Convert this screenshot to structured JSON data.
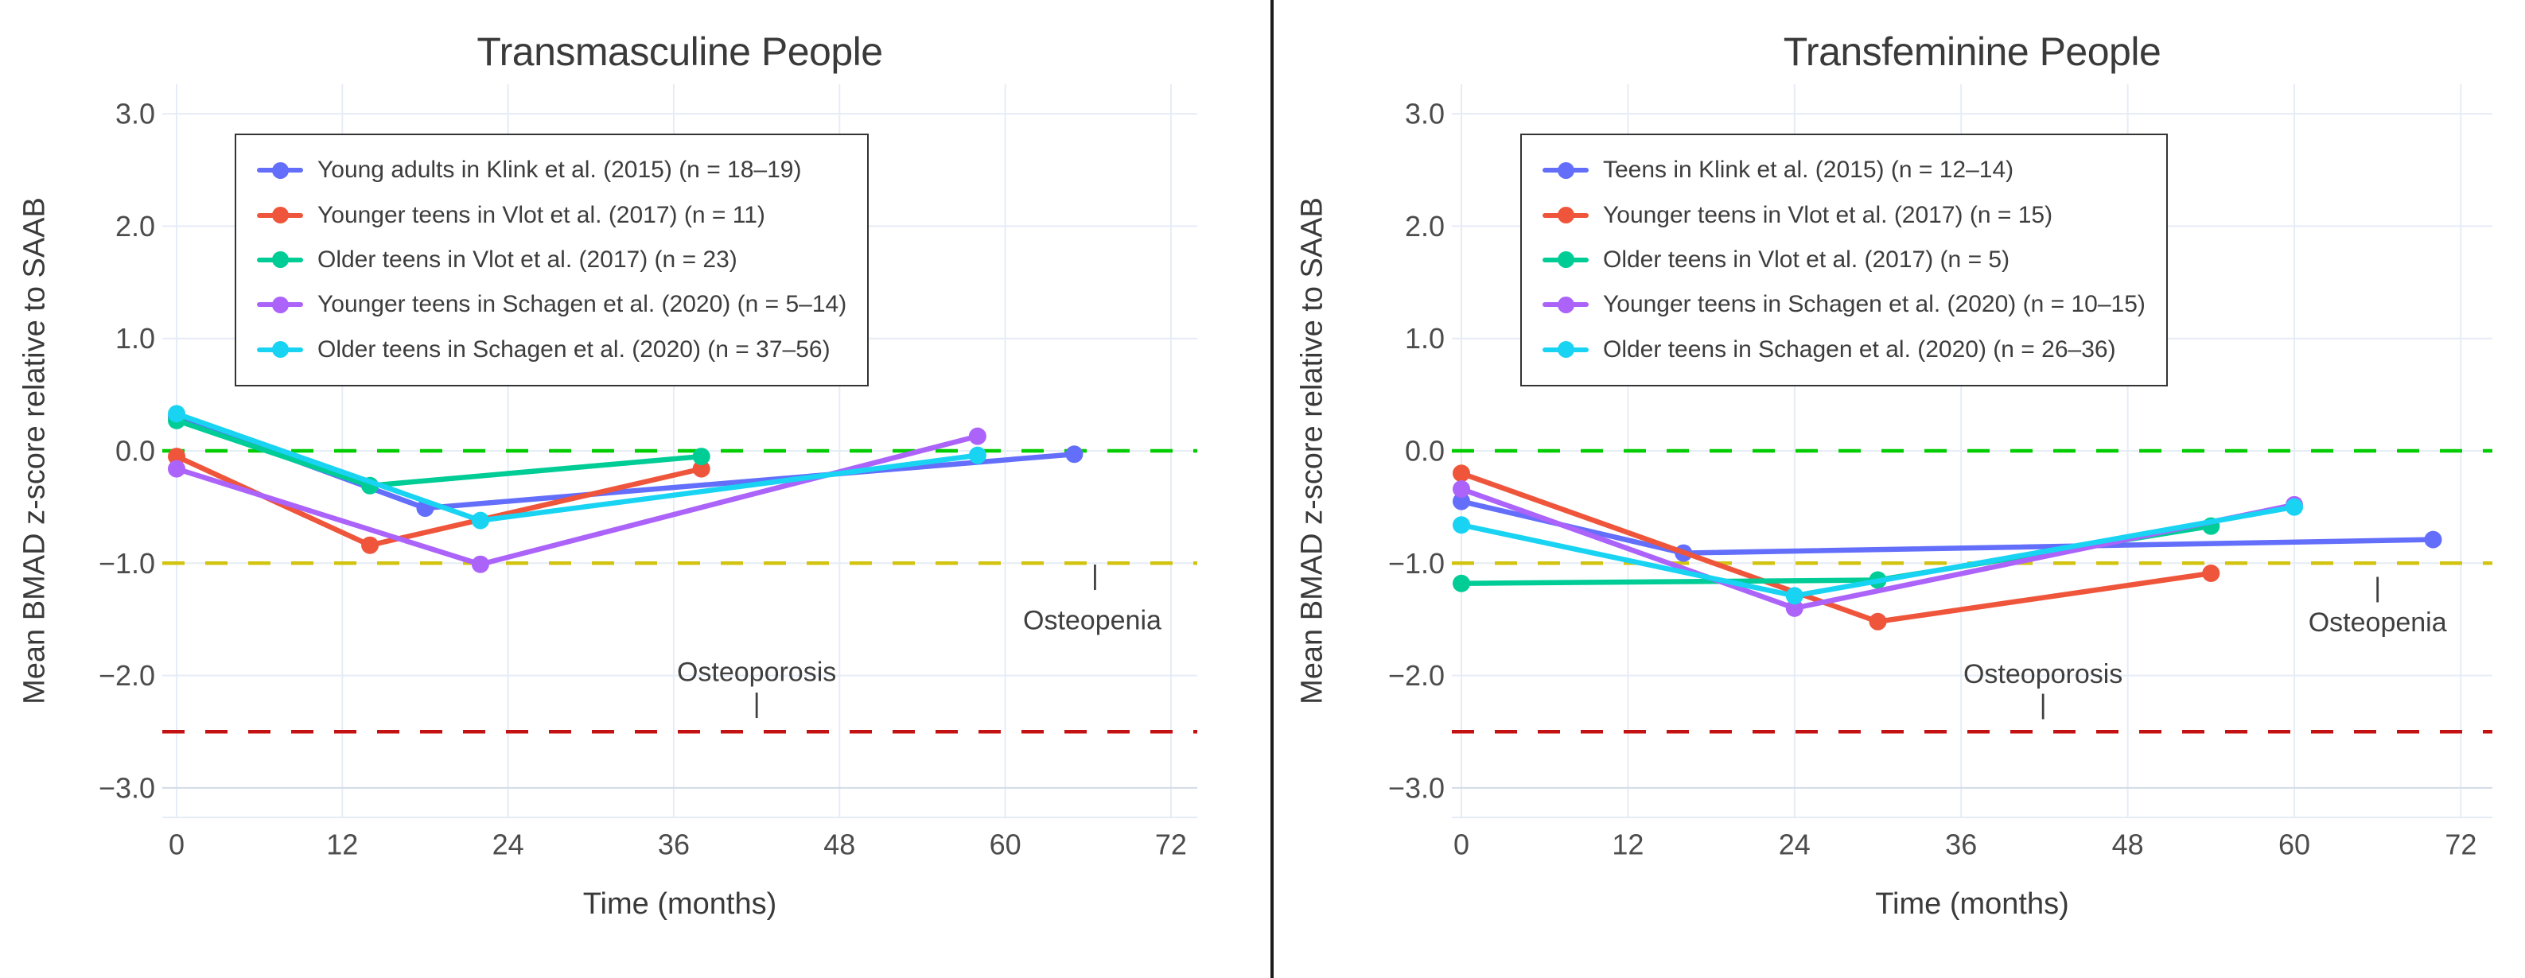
{
  "figure": {
    "background": "#ffffff",
    "divider_color": "#1b1b1b",
    "grid_color": "#e6ecf6",
    "text_color": "#3a3a3a"
  },
  "chart_data": [
    {
      "type": "line",
      "title": "Transmasculine People",
      "xlabel": "Time (months)",
      "ylabel": "Mean BMAD z-score relative to SAAB",
      "xlim": [
        -1,
        74
      ],
      "ylim": [
        -3.25,
        3.25
      ],
      "x_ticks": [
        0,
        12,
        24,
        36,
        48,
        60,
        72
      ],
      "y_ticks": [
        3,
        2,
        1,
        0,
        -1,
        -2,
        -3
      ],
      "y_tick_labels": [
        "3.0",
        "2.0",
        "1.0",
        "0.0",
        "−1.0",
        "−2.0",
        "−3.0"
      ],
      "grid": true,
      "legend_position": "top-left-inside",
      "series": [
        {
          "name": "Young adults in Klink et al. (2015) (n = 18–19)",
          "color": "#636EFA",
          "x": [
            0,
            18,
            65
          ],
          "y": [
            0.3,
            -0.51,
            -0.03
          ]
        },
        {
          "name": "Younger teens in Vlot et al. (2017) (n = 11)",
          "color": "#EF553B",
          "x": [
            0,
            14,
            38
          ],
          "y": [
            -0.05,
            -0.84,
            -0.16
          ]
        },
        {
          "name": "Older teens in Vlot et al. (2017) (n = 23)",
          "color": "#00CC96",
          "x": [
            0,
            14,
            38
          ],
          "y": [
            0.27,
            -0.31,
            -0.05
          ]
        },
        {
          "name": "Younger teens in Schagen et al. (2020) (n = 5–14)",
          "color": "#AB63FA",
          "x": [
            0,
            22,
            58
          ],
          "y": [
            -0.16,
            -1.01,
            0.13
          ]
        },
        {
          "name": "Older teens in Schagen et al. (2020) (n = 37–56)",
          "color": "#19D3F3",
          "x": [
            0,
            22,
            58
          ],
          "y": [
            0.33,
            -0.62,
            -0.04
          ]
        }
      ],
      "reference_lines": [
        {
          "y": 0.0,
          "color": "#00CC00",
          "style": "dashed"
        },
        {
          "y": -1.0,
          "color": "#D2C40E",
          "style": "dashed"
        },
        {
          "y": -2.5,
          "color": "#C41111",
          "style": "dashed"
        }
      ],
      "annotations": [
        {
          "text": "Osteoporosis",
          "x": 42,
          "y": -1.97
        },
        {
          "text": "|",
          "x": 42,
          "y": -2.25
        },
        {
          "text": "Osteopenia",
          "x": 66.3,
          "y": -1.51
        },
        {
          "text": "|",
          "x": 66.5,
          "y": -1.11
        }
      ]
    },
    {
      "type": "line",
      "title": "Transfeminine People",
      "xlabel": "Time (months)",
      "ylabel": "Mean BMAD z-score relative to SAAB",
      "xlim": [
        -1,
        74
      ],
      "ylim": [
        -3.25,
        3.25
      ],
      "x_ticks": [
        0,
        12,
        24,
        36,
        48,
        60,
        72
      ],
      "y_ticks": [
        3,
        2,
        1,
        0,
        -1,
        -2,
        -3
      ],
      "y_tick_labels": [
        "3.0",
        "2.0",
        "1.0",
        "0.0",
        "−1.0",
        "−2.0",
        "−3.0"
      ],
      "grid": true,
      "legend_position": "top-left-inside",
      "series": [
        {
          "name": "Teens in Klink et al. (2015) (n = 12–14)",
          "color": "#636EFA",
          "x": [
            0,
            16,
            70
          ],
          "y": [
            -0.45,
            -0.91,
            -0.79
          ]
        },
        {
          "name": "Younger teens in Vlot et al. (2017) (n = 15)",
          "color": "#EF553B",
          "x": [
            0,
            30,
            54
          ],
          "y": [
            -0.2,
            -1.52,
            -1.09
          ]
        },
        {
          "name": "Older teens in Vlot et al. (2017) (n = 5)",
          "color": "#00CC96",
          "x": [
            0,
            30,
            54
          ],
          "y": [
            -1.18,
            -1.15,
            -0.67
          ]
        },
        {
          "name": "Younger teens in Schagen et al. (2020) (n = 10–15)",
          "color": "#AB63FA",
          "x": [
            0,
            24,
            60
          ],
          "y": [
            -0.34,
            -1.4,
            -0.48
          ]
        },
        {
          "name": "Older teens in Schagen et al. (2020) (n = 26–36)",
          "color": "#19D3F3",
          "x": [
            0,
            24,
            60
          ],
          "y": [
            -0.66,
            -1.29,
            -0.5
          ]
        }
      ],
      "reference_lines": [
        {
          "y": 0.0,
          "color": "#00CC00",
          "style": "dashed"
        },
        {
          "y": -1.0,
          "color": "#D2C40E",
          "style": "dashed"
        },
        {
          "y": -2.5,
          "color": "#C41111",
          "style": "dashed"
        }
      ],
      "annotations": [
        {
          "text": "Osteoporosis",
          "x": 41.9,
          "y": -1.99
        },
        {
          "text": "|",
          "x": 41.9,
          "y": -2.26
        },
        {
          "text": "Osteopenia",
          "x": 66,
          "y": -1.53
        },
        {
          "text": "|",
          "x": 66,
          "y": -1.22
        }
      ]
    }
  ]
}
